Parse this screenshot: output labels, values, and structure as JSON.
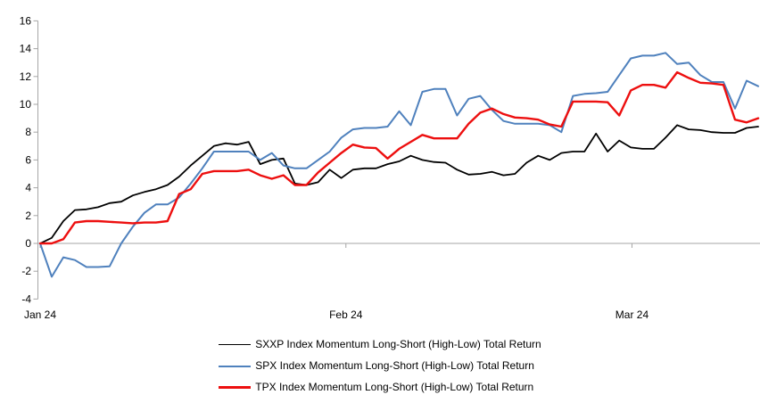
{
  "page": {
    "background": "#ffffff"
  },
  "chart_data": {
    "type": "line",
    "title": "",
    "xlabel": "",
    "ylabel": "",
    "grid": "zero-line-only",
    "legend_position": "bottom-center",
    "axis_color": "#a6a6a6",
    "text_color": "#000000",
    "y_axis": {
      "min": -4,
      "max": 16,
      "tick_step": 2,
      "tick_labels": [
        "16",
        "14",
        "12",
        "10",
        "8",
        "6",
        "4",
        "2",
        "0",
        "-2",
        "-4"
      ]
    },
    "x_axis": {
      "tick_labels": [
        "Jan 24",
        "Feb 24",
        "Mar 24"
      ],
      "tick_positions_index": [
        0,
        26.4,
        51.1
      ],
      "points_per_series": 63
    },
    "series": [
      {
        "name": "SXXP Index Momentum Long-Short (High-Low) Total Return",
        "color": "#000000",
        "values": [
          0.0,
          0.4,
          1.6,
          2.4,
          2.45,
          2.6,
          2.9,
          3.0,
          3.45,
          3.7,
          3.9,
          4.2,
          4.8,
          5.6,
          6.3,
          7.0,
          7.2,
          7.1,
          7.3,
          5.7,
          6.0,
          6.1,
          4.3,
          4.2,
          4.4,
          5.3,
          4.7,
          5.3,
          5.4,
          5.4,
          5.7,
          5.9,
          6.3,
          6.0,
          5.85,
          5.8,
          5.3,
          4.95,
          5.0,
          5.15,
          4.9,
          5.0,
          5.8,
          6.3,
          6.0,
          6.5,
          6.6,
          6.6,
          7.9,
          6.6,
          7.4,
          6.9,
          6.8,
          6.8,
          7.6,
          8.5,
          8.2,
          8.15,
          8.0,
          7.95,
          7.95,
          8.3,
          8.4
        ]
      },
      {
        "name": "SPX Index Momentum Long-Short (High-Low) Total Return",
        "color": "#4f81bd",
        "values": [
          0.0,
          -2.4,
          -1.0,
          -1.2,
          -1.7,
          -1.7,
          -1.65,
          0.0,
          1.2,
          2.2,
          2.8,
          2.8,
          3.3,
          4.3,
          5.4,
          6.6,
          6.6,
          6.6,
          6.6,
          6.0,
          6.5,
          5.6,
          5.4,
          5.4,
          6.0,
          6.6,
          7.6,
          8.2,
          8.3,
          8.3,
          8.4,
          9.5,
          8.5,
          10.9,
          11.1,
          11.1,
          9.2,
          10.4,
          10.6,
          9.6,
          8.8,
          8.6,
          8.6,
          8.6,
          8.5,
          8.0,
          10.6,
          10.75,
          10.8,
          10.9,
          12.1,
          13.3,
          13.5,
          13.5,
          13.7,
          12.9,
          13.0,
          12.1,
          11.6,
          11.6,
          9.7,
          11.7,
          11.3
        ]
      },
      {
        "name": "TPX Index Momentum Long-Short (High-Low) Total Return",
        "color": "#ed0f0f",
        "values": [
          0.0,
          0.0,
          0.3,
          1.5,
          1.6,
          1.6,
          1.55,
          1.5,
          1.45,
          1.5,
          1.5,
          1.6,
          3.55,
          3.9,
          5.0,
          5.2,
          5.2,
          5.2,
          5.3,
          4.9,
          4.65,
          4.9,
          4.2,
          4.2,
          5.1,
          5.8,
          6.5,
          7.1,
          6.9,
          6.85,
          6.1,
          6.8,
          7.3,
          7.8,
          7.55,
          7.55,
          7.55,
          8.6,
          9.4,
          9.7,
          9.3,
          9.05,
          9.0,
          8.9,
          8.55,
          8.4,
          10.2,
          10.2,
          10.2,
          10.15,
          9.2,
          11.0,
          11.4,
          11.4,
          11.2,
          12.3,
          11.9,
          11.55,
          11.5,
          11.4,
          8.9,
          8.7,
          9.0
        ]
      }
    ]
  }
}
